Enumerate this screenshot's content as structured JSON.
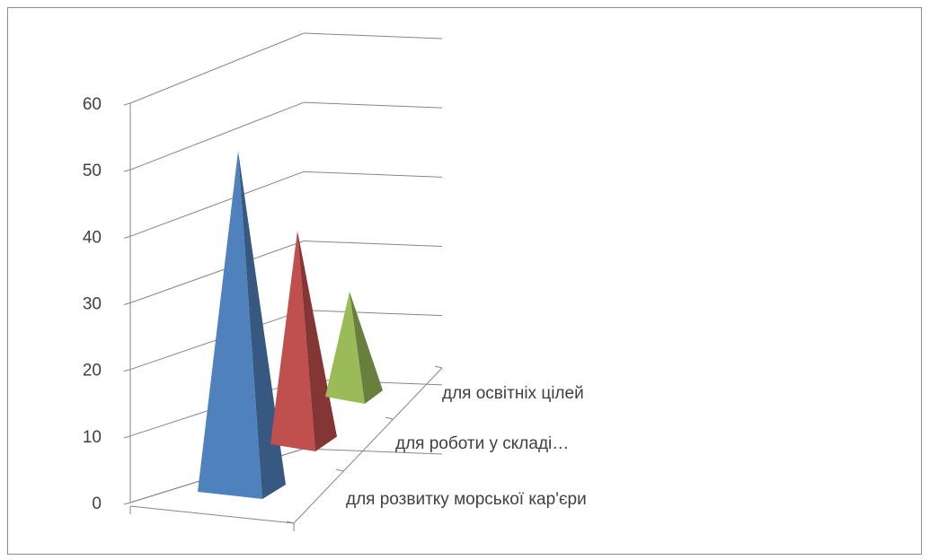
{
  "chart_data": {
    "type": "bar",
    "bar_shape": "pyramid-3d",
    "categories": [
      "для розвитку морської кар'єри",
      "для роботи у складі…",
      "для освітніх цілей"
    ],
    "values": [
      51,
      40,
      31
    ],
    "colors": [
      "#4f81bd",
      "#c0504d",
      "#9bbb59"
    ],
    "ylim": [
      0,
      60
    ],
    "yticks": [
      "0",
      "10",
      "20",
      "30",
      "40",
      "50",
      "60"
    ],
    "grid": true,
    "legend": "none",
    "title": "",
    "xlabel": "",
    "ylabel": ""
  }
}
